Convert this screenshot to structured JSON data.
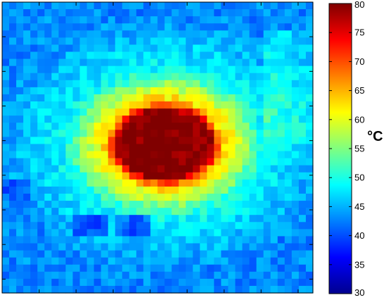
{
  "chart_data": {
    "type": "heatmap",
    "title": "",
    "xlabel": "",
    "ylabel": "",
    "colormap": "jet",
    "grid": false,
    "x_tick_labels": "none",
    "y_tick_labels": "none",
    "colorbar": {
      "min": 30,
      "max": 80,
      "ticks": [
        30,
        35,
        40,
        45,
        50,
        55,
        60,
        65,
        70,
        75,
        80
      ],
      "unit": "°C",
      "placement": "right"
    },
    "field": {
      "cols": 44,
      "rows": 41,
      "background_c": 43,
      "hotspot": {
        "center_col": 22.5,
        "center_row": 19.5,
        "radius_cols": 7.5,
        "radius_rows": 5.5,
        "peak_c": 80,
        "edge_c": 64
      },
      "halo_c": 49,
      "cool_spots": [
        {
          "col": 12,
          "row": 31,
          "c": 37
        },
        {
          "col": 18,
          "row": 31,
          "c": 38
        },
        {
          "col": 1,
          "row": 26,
          "c": 38
        }
      ]
    }
  }
}
